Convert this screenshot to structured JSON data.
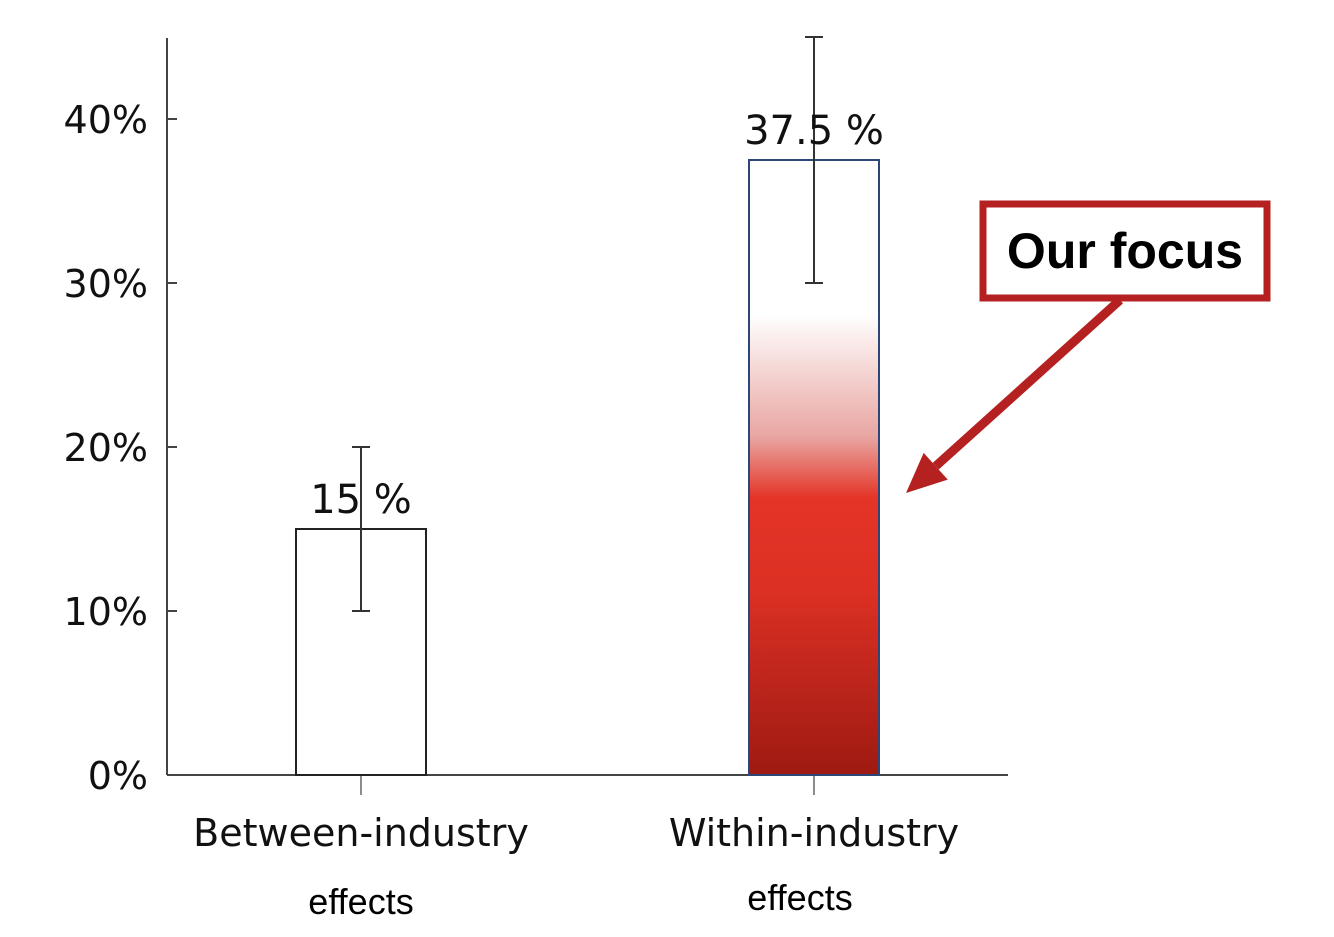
{
  "chart_data": {
    "type": "bar",
    "categories": [
      {
        "line1": "Between-industry",
        "line2": "effects"
      },
      {
        "line1": "Within-industry",
        "line2": "effects"
      }
    ],
    "values": [
      15,
      37.5
    ],
    "value_labels": [
      "15 %",
      "37.5 %"
    ],
    "error_bars": [
      {
        "low": 10,
        "high": 20
      },
      {
        "low": 30,
        "high": 45
      }
    ],
    "yticks": [
      0,
      10,
      20,
      30,
      40
    ],
    "ytick_labels": [
      "0%",
      "10%",
      "20%",
      "30%",
      "40%"
    ],
    "ylim": [
      0,
      45
    ],
    "title": "",
    "xlabel": "",
    "ylabel": "",
    "grid": false,
    "bar_styles": [
      {
        "fill": "#ffffff",
        "stroke": "#222222"
      },
      {
        "fill": "gradient-red",
        "stroke": "#2e4577"
      }
    ],
    "annotation": {
      "text": "Our focus",
      "target_category": 1,
      "color": "#b52020"
    }
  }
}
